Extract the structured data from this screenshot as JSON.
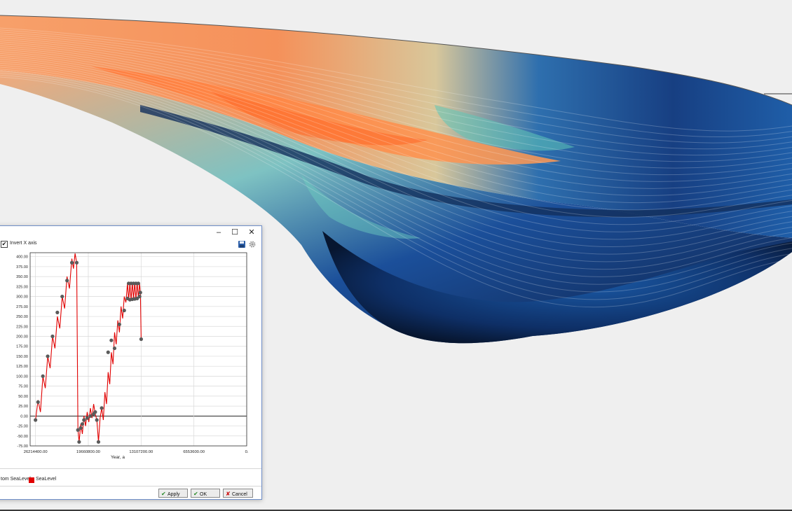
{
  "dialog": {
    "window_controls": {
      "minimize": "–",
      "maximize": "☐",
      "close": "✕"
    },
    "invert_x_axis": {
      "label": "Invert X axis",
      "checked": true
    },
    "icons": {
      "save": "save-icon",
      "settings": "gear-icon"
    },
    "legend": [
      {
        "label": "tom SeaLevel",
        "swatch": false
      },
      {
        "label": "SeaLevel",
        "swatch": true,
        "color": "#e10000"
      }
    ],
    "buttons": {
      "apply": {
        "label": "Apply",
        "icon": "✔"
      },
      "ok": {
        "label": "OK",
        "icon": "✔"
      },
      "cancel": {
        "label": "Cancel",
        "icon": "✘"
      }
    }
  },
  "chart_data": {
    "type": "line",
    "xlabel": "Year, a",
    "ylabel": "",
    "x_inverted": true,
    "xlim": [
      26880000,
      0
    ],
    "ylim": [
      -75,
      410
    ],
    "x_ticks": [
      "26214400.00",
      "19660800.00",
      "13107200.00",
      "6553600.00",
      "0."
    ],
    "x_tick_values": [
      26214400,
      19660800,
      13107200,
      6553600,
      0
    ],
    "y_ticks": [
      "400.00",
      "375.00",
      "350.00",
      "325.00",
      "300.00",
      "275.00",
      "250.00",
      "225.00",
      "200.00",
      "175.00",
      "150.00",
      "125.00",
      "100.00",
      "75.00",
      "50.00",
      "25.00",
      "0.00",
      "-25.00",
      "-50.00",
      "-75.00"
    ],
    "y_tick_values": [
      400,
      375,
      350,
      325,
      300,
      275,
      250,
      225,
      200,
      175,
      150,
      125,
      100,
      75,
      50,
      25,
      0,
      -25,
      -50,
      -75
    ],
    "grid": true,
    "series": [
      {
        "name": "SeaLevel",
        "color": "#e10000",
        "points": [
          [
            26214400,
            -10
          ],
          [
            25900000,
            40
          ],
          [
            25600000,
            10
          ],
          [
            25300000,
            100
          ],
          [
            25000000,
            70
          ],
          [
            24700000,
            150
          ],
          [
            24400000,
            120
          ],
          [
            24100000,
            200
          ],
          [
            23800000,
            170
          ],
          [
            23500000,
            250
          ],
          [
            23200000,
            220
          ],
          [
            22900000,
            300
          ],
          [
            22600000,
            270
          ],
          [
            22300000,
            350
          ],
          [
            22000000,
            320
          ],
          [
            21700000,
            395
          ],
          [
            21500000,
            370
          ],
          [
            21300000,
            408
          ],
          [
            21100000,
            385
          ],
          [
            20950000,
            -35
          ],
          [
            20800000,
            -65
          ],
          [
            20600000,
            -20
          ],
          [
            20400000,
            -45
          ],
          [
            20200000,
            0
          ],
          [
            20000000,
            -25
          ],
          [
            19800000,
            10
          ],
          [
            19600000,
            -15
          ],
          [
            19400000,
            20
          ],
          [
            19200000,
            -5
          ],
          [
            19000000,
            30
          ],
          [
            18800000,
            5
          ],
          [
            18600000,
            -10
          ],
          [
            18400000,
            -65
          ],
          [
            18200000,
            -5
          ],
          [
            18000000,
            20
          ],
          [
            17800000,
            -10
          ],
          [
            17600000,
            60
          ],
          [
            17400000,
            30
          ],
          [
            17200000,
            110
          ],
          [
            17000000,
            80
          ],
          [
            16800000,
            160
          ],
          [
            16600000,
            130
          ],
          [
            16400000,
            210
          ],
          [
            16200000,
            180
          ],
          [
            16000000,
            240
          ],
          [
            15800000,
            210
          ],
          [
            15600000,
            275
          ],
          [
            15400000,
            245
          ],
          [
            15200000,
            300
          ],
          [
            15000000,
            285
          ],
          [
            14800000,
            333
          ],
          [
            14650000,
            290
          ],
          [
            14500000,
            335
          ],
          [
            14350000,
            292
          ],
          [
            14200000,
            335
          ],
          [
            14050000,
            293
          ],
          [
            13900000,
            335
          ],
          [
            13750000,
            294
          ],
          [
            13600000,
            335
          ],
          [
            13450000,
            295
          ],
          [
            13300000,
            333
          ],
          [
            13200000,
            310
          ],
          [
            13100000,
            193
          ]
        ]
      }
    ],
    "markers": [
      [
        26214400,
        -10
      ],
      [
        25900000,
        35
      ],
      [
        25300000,
        100
      ],
      [
        24700000,
        150
      ],
      [
        24100000,
        200
      ],
      [
        23500000,
        260
      ],
      [
        22900000,
        300
      ],
      [
        22300000,
        340
      ],
      [
        21700000,
        385
      ],
      [
        21100000,
        385
      ],
      [
        20950000,
        -35
      ],
      [
        20800000,
        -65
      ],
      [
        20600000,
        -30
      ],
      [
        20400000,
        -20
      ],
      [
        20200000,
        -10
      ],
      [
        19800000,
        -5
      ],
      [
        19400000,
        0
      ],
      [
        19000000,
        5
      ],
      [
        18800000,
        10
      ],
      [
        18600000,
        -10
      ],
      [
        18400000,
        -65
      ],
      [
        18000000,
        20
      ],
      [
        17200000,
        160
      ],
      [
        16800000,
        190
      ],
      [
        16400000,
        170
      ],
      [
        15800000,
        230
      ],
      [
        15200000,
        265
      ],
      [
        14800000,
        295
      ],
      [
        14650000,
        333
      ],
      [
        14500000,
        292
      ],
      [
        14350000,
        333
      ],
      [
        14200000,
        293
      ],
      [
        14050000,
        333
      ],
      [
        13900000,
        294
      ],
      [
        13750000,
        333
      ],
      [
        13600000,
        295
      ],
      [
        13450000,
        333
      ],
      [
        13300000,
        300
      ],
      [
        13200000,
        310
      ],
      [
        13100000,
        193
      ]
    ],
    "marker_color": "#5a5a5a"
  }
}
